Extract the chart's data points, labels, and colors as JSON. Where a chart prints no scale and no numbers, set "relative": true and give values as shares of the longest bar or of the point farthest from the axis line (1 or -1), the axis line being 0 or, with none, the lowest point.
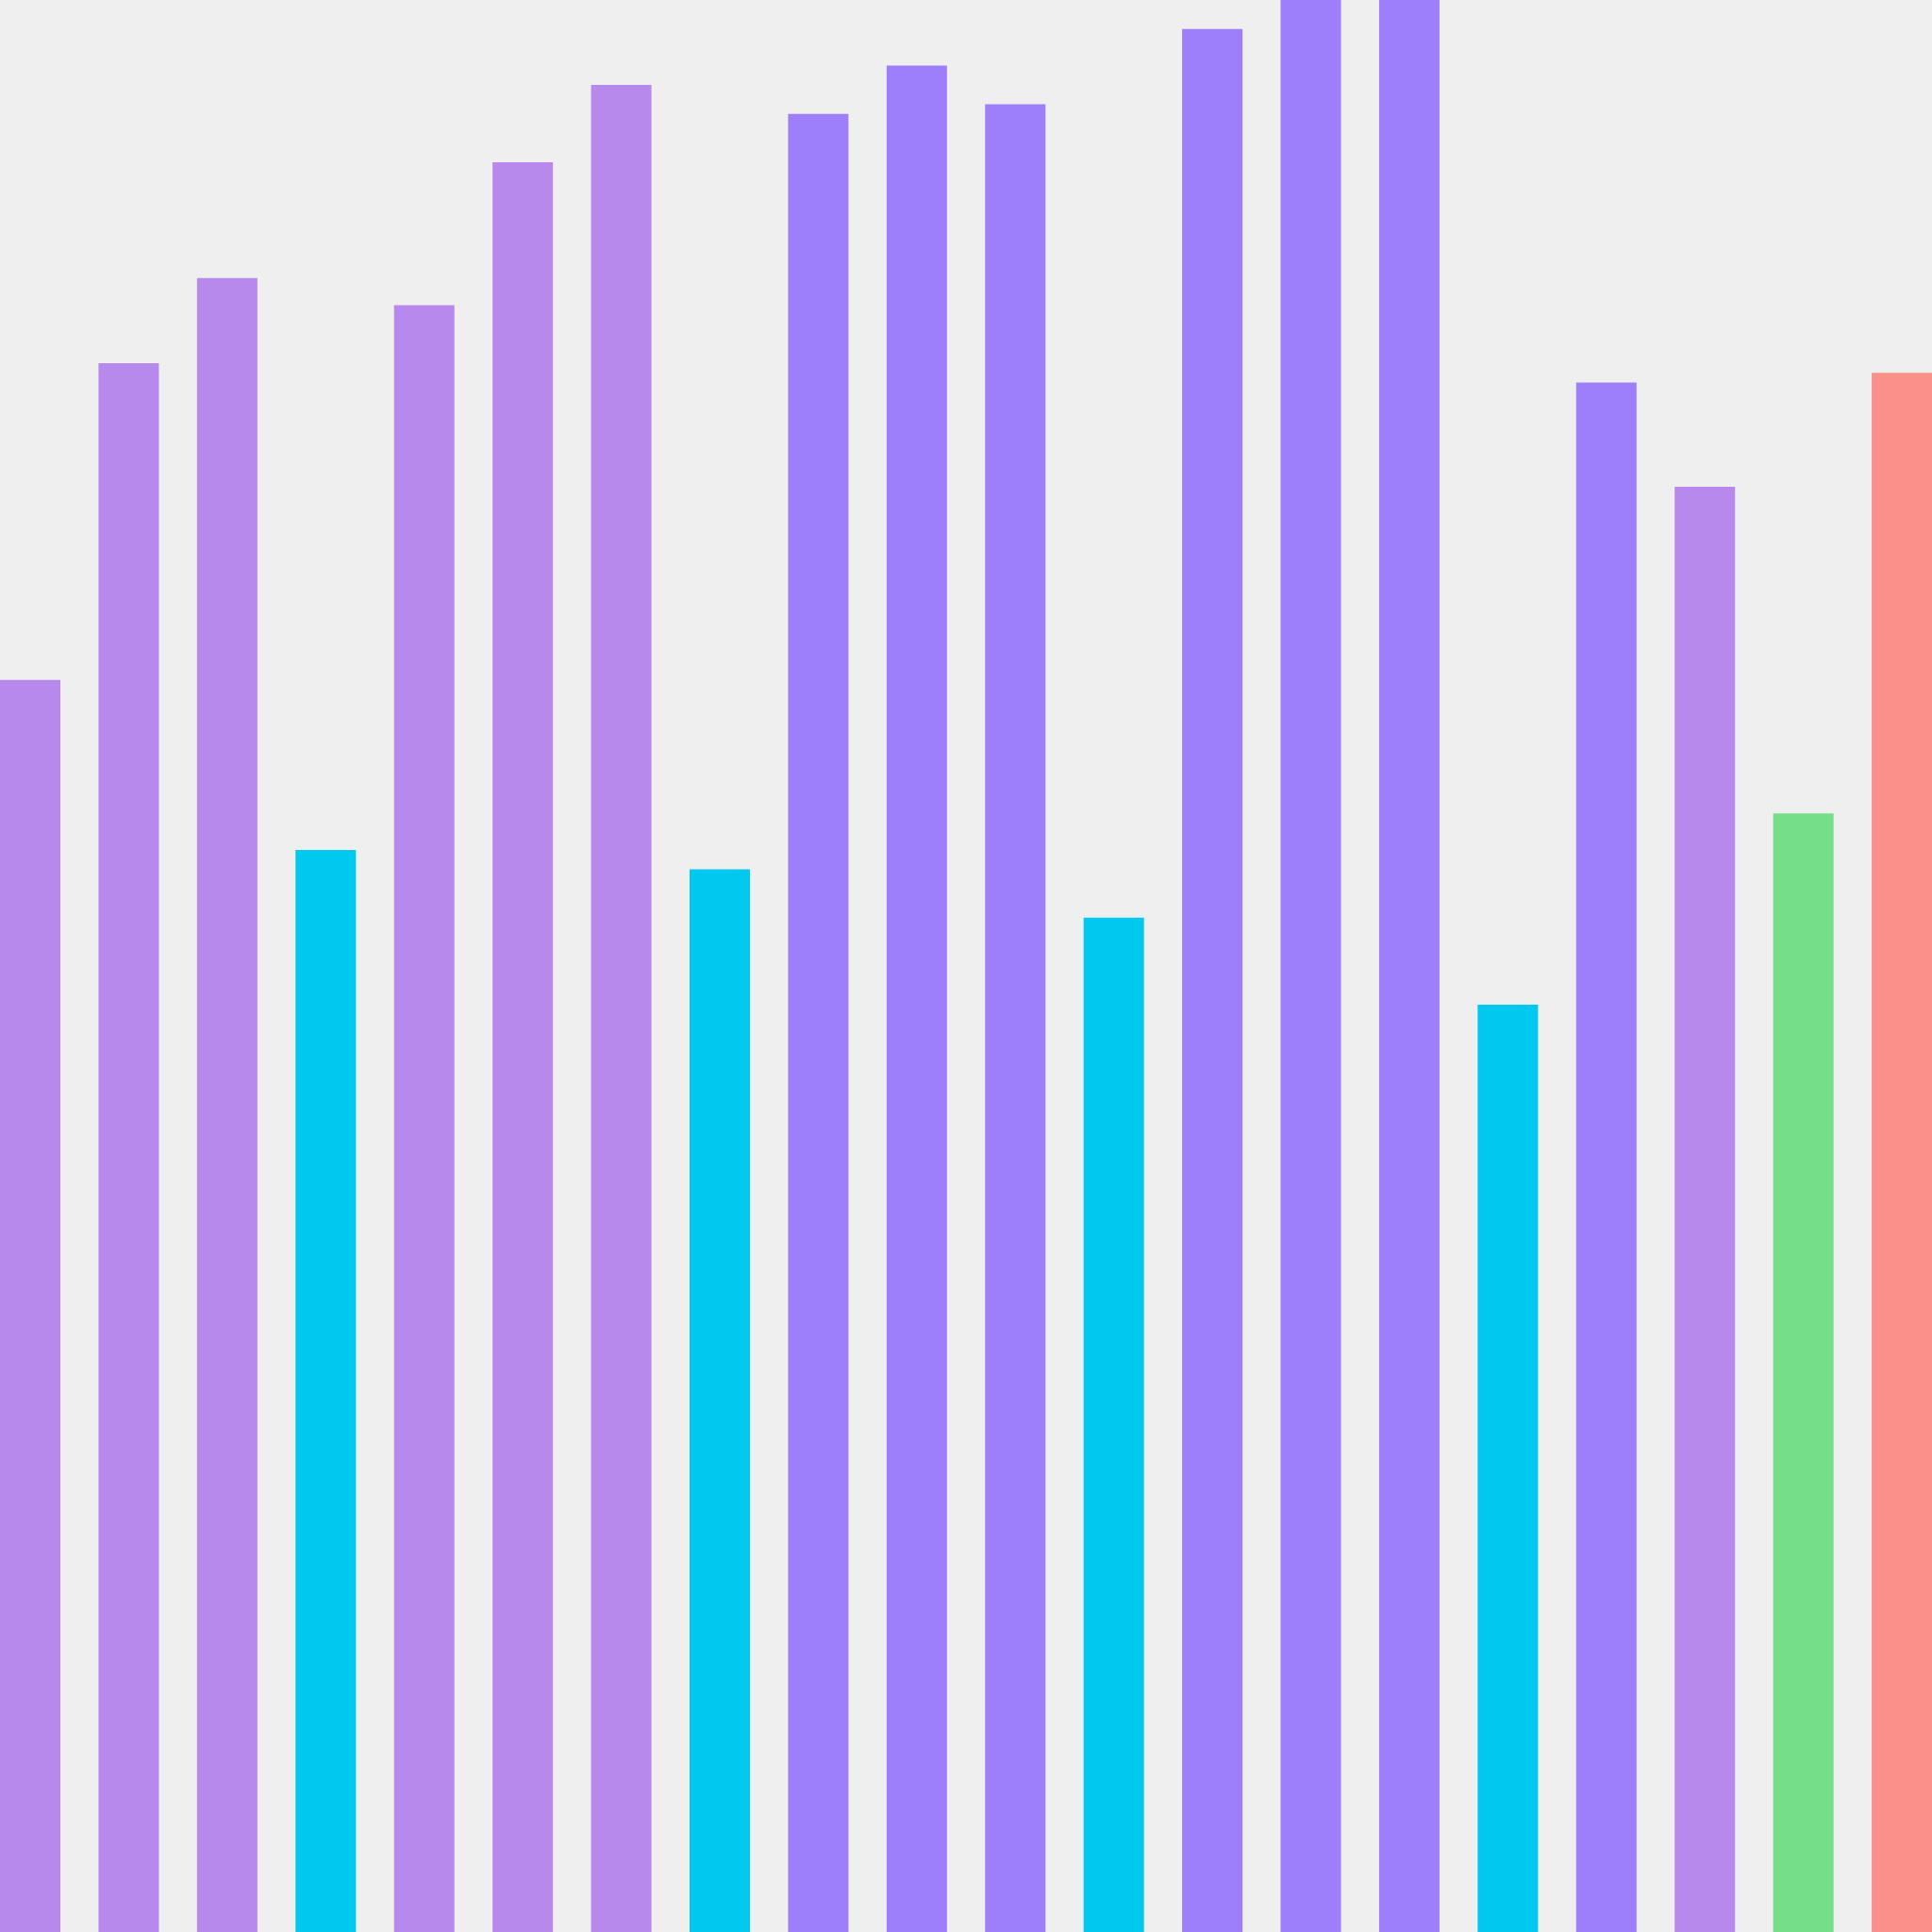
{
  "chart_data": {
    "type": "bar",
    "relative": true,
    "categories": [
      null,
      null,
      null,
      null,
      null,
      null,
      null,
      null,
      null,
      null,
      null,
      null,
      null,
      null,
      null,
      null,
      null,
      null,
      null,
      null
    ],
    "values": [
      0.648,
      0.812,
      0.856,
      0.56,
      0.842,
      0.916,
      0.956,
      0.55,
      0.941,
      0.966,
      0.946,
      0.525,
      0.985,
      1,
      1,
      0.48,
      0.802,
      0.748,
      0.579,
      0.807
    ],
    "colors": [
      "#b889ec",
      "#b889ec",
      "#b889ec",
      "#00c8ee",
      "#b889ec",
      "#b889ec",
      "#b889ec",
      "#00c8ee",
      "#9d7efb",
      "#9d7efb",
      "#9d7efb",
      "#00c8ee",
      "#9d7efb",
      "#9d7efb",
      "#9d7efb",
      "#00c8ee",
      "#9d7efb",
      "#b889ec",
      "#74df88",
      "#fb8f8a"
    ]
  }
}
